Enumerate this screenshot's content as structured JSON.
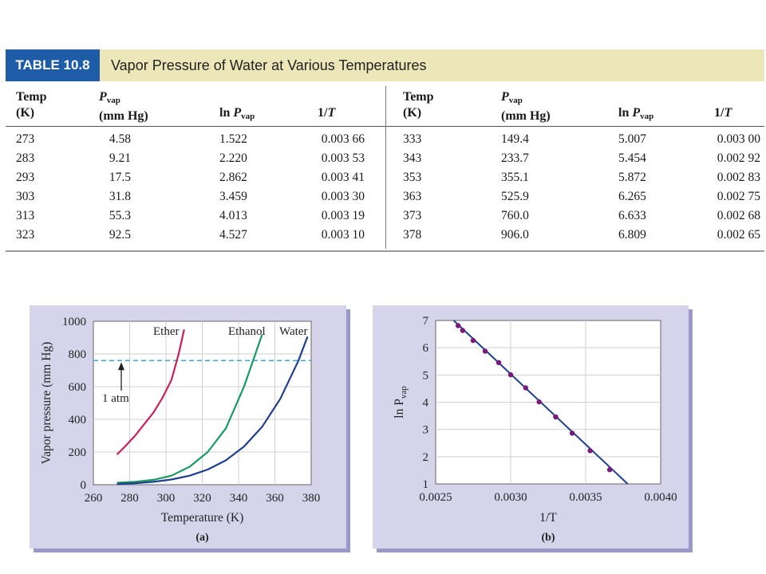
{
  "table": {
    "tag": "TABLE 10.8",
    "title": "Vapor Pressure of Water at Various Temperatures",
    "headers": {
      "temp": "Temp",
      "temp_unit": "(K)",
      "pvap_p": "P",
      "pvap_sub": "vap",
      "pvap_unit": "(mm Hg)",
      "ln": "ln ",
      "ln_p": "P",
      "ln_sub": "vap",
      "inv": "1/",
      "inv_t": "T"
    },
    "left_rows": [
      [
        "273",
        "4.58",
        "1.522",
        "0.003 66"
      ],
      [
        "283",
        "9.21",
        "2.220",
        "0.003 53"
      ],
      [
        "293",
        "17.5",
        "2.862",
        "0.003 41"
      ],
      [
        "303",
        "31.8",
        "3.459",
        "0.003 30"
      ],
      [
        "313",
        "55.3",
        "4.013",
        "0.003 19"
      ],
      [
        "323",
        "92.5",
        "4.527",
        "0.003 10"
      ]
    ],
    "right_rows": [
      [
        "333",
        "149.4",
        "5.007",
        "0.003 00"
      ],
      [
        "343",
        "233.7",
        "5.454",
        "0.002 92"
      ],
      [
        "353",
        "355.1",
        "5.872",
        "0.002 83"
      ],
      [
        "363",
        "525.9",
        "6.265",
        "0.002 75"
      ],
      [
        "373",
        "760.0",
        "6.633",
        "0.002 68"
      ],
      [
        "378",
        "906.0",
        "6.809",
        "0.002 65"
      ]
    ]
  },
  "chart_data": [
    {
      "type": "line",
      "panel_label": "(a)",
      "xlabel": "Temperature (K)",
      "ylabel": "Vapor pressure (mm Hg)",
      "xlim": [
        260,
        380
      ],
      "ylim": [
        0,
        1000
      ],
      "xticks": [
        "260",
        "280",
        "300",
        "320",
        "340",
        "360",
        "380"
      ],
      "yticks": [
        "0",
        "200",
        "400",
        "600",
        "800",
        "1000"
      ],
      "grid": true,
      "reference_line": {
        "y": 760,
        "label": "1 atm",
        "color": "#3aa8d8"
      },
      "series": [
        {
          "name": "Ether",
          "color": "#c8205a",
          "x": [
            273,
            278,
            283,
            288,
            293,
            298,
            303,
            307,
            310
          ],
          "y": [
            185,
            240,
            300,
            370,
            440,
            530,
            640,
            800,
            950
          ]
        },
        {
          "name": "Ethanol",
          "color": "#1a9a62",
          "x": [
            273,
            283,
            293,
            303,
            313,
            323,
            333,
            343,
            353
          ],
          "y": [
            12,
            18,
            30,
            55,
            110,
            200,
            345,
            600,
            920
          ]
        },
        {
          "name": "Water",
          "color": "#1f3f8f",
          "x": [
            273,
            283,
            293,
            303,
            313,
            323,
            333,
            343,
            353,
            363,
            373,
            378
          ],
          "y": [
            4.58,
            9.21,
            17.5,
            31.8,
            55.3,
            92.5,
            149.4,
            233.7,
            355.1,
            525.9,
            760.0,
            906.0
          ]
        }
      ]
    },
    {
      "type": "scatter",
      "panel_label": "(b)",
      "xlabel": "1/T",
      "ylabel_main": "ln P",
      "ylabel_sub": "vap",
      "xlim": [
        0.0025,
        0.004
      ],
      "ylim": [
        1,
        7
      ],
      "xticks": [
        "0.0025",
        "0.0030",
        "0.0035",
        "0.0040"
      ],
      "yticks": [
        "1",
        "2",
        "3",
        "4",
        "5",
        "6",
        "7"
      ],
      "grid": true,
      "fit_line": {
        "x": [
          0.00262,
          0.00378
        ],
        "y": [
          7.0,
          1.0
        ],
        "color": "#1f3f8f"
      },
      "points_color": "#7a1a7a",
      "series": [
        {
          "x": [
            0.00265,
            0.00268,
            0.00275,
            0.00283,
            0.00292,
            0.003,
            0.0031,
            0.00319,
            0.0033,
            0.00341,
            0.00353,
            0.00366
          ],
          "y": [
            6.809,
            6.633,
            6.265,
            5.872,
            5.454,
            5.007,
            4.527,
            4.013,
            3.459,
            2.862,
            2.22,
            1.522
          ]
        }
      ]
    }
  ]
}
